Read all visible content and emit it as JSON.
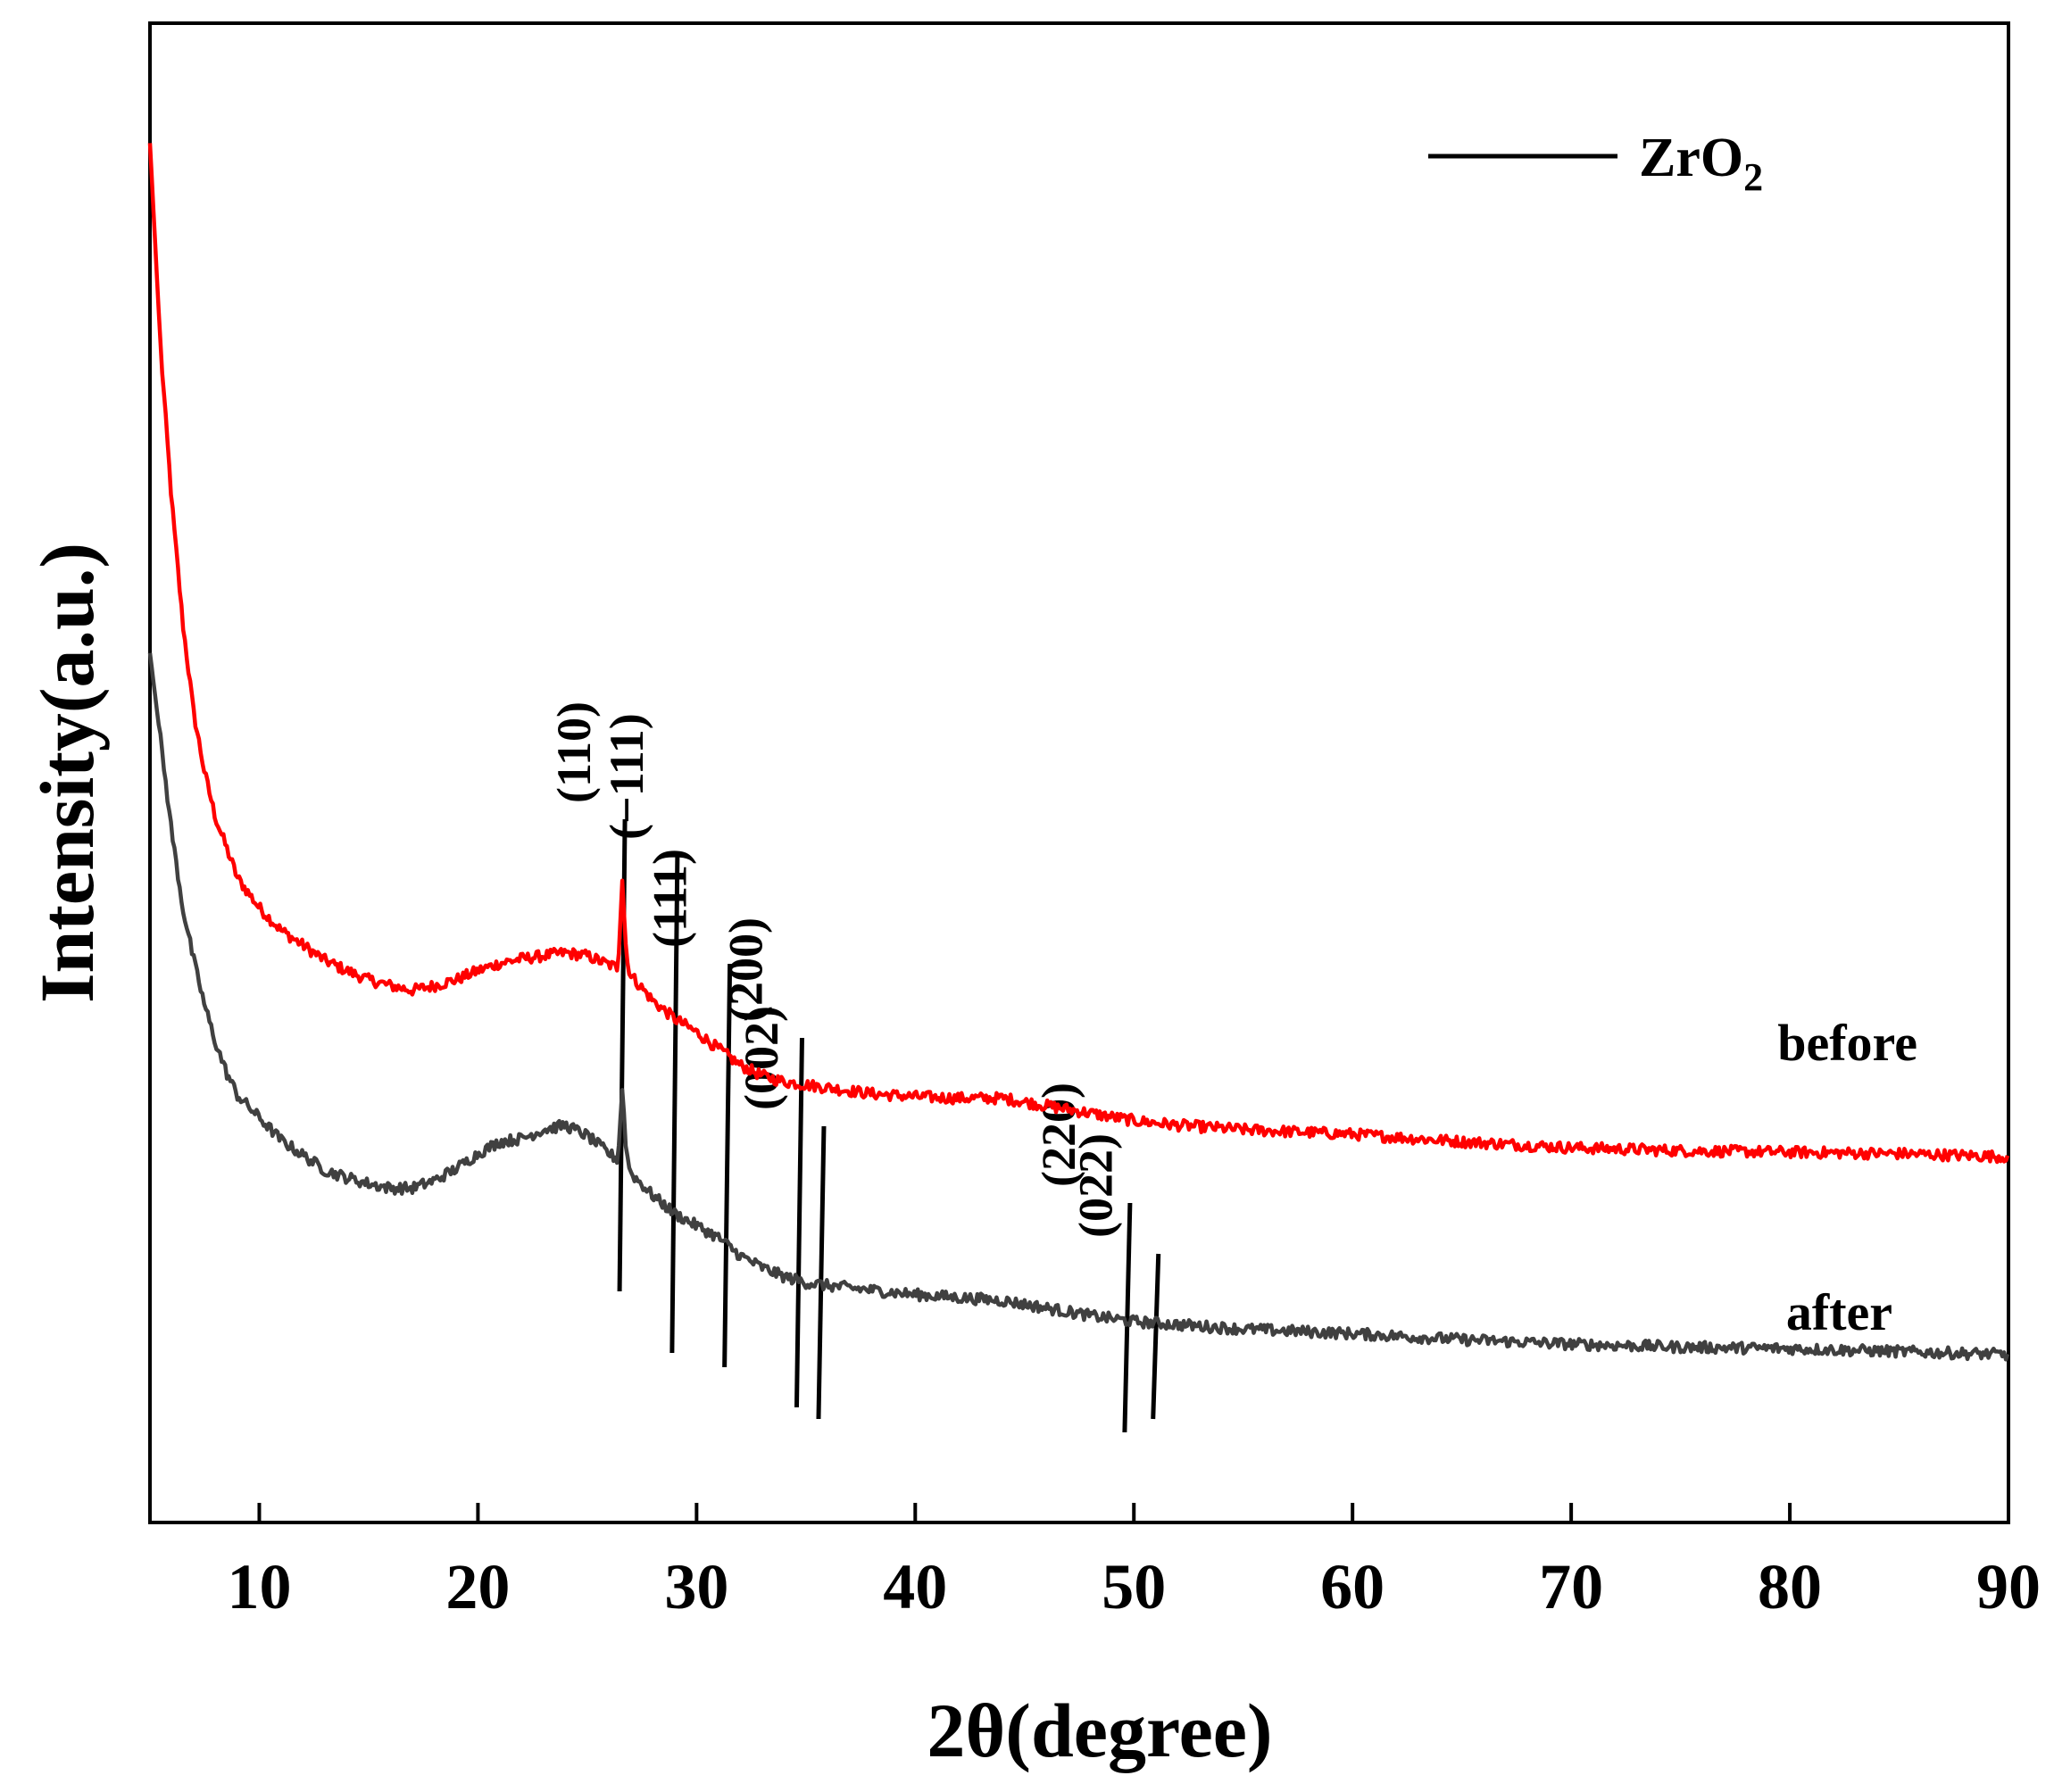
{
  "chart_data": {
    "type": "line",
    "title": "",
    "xlabel": "2θ(degree)",
    "ylabel": "Intensity(a.u.)",
    "xlim": [
      5,
      90
    ],
    "ylim": [
      0,
      100
    ],
    "x_ticks": [
      "10",
      "20",
      "30",
      "40",
      "50",
      "60",
      "70",
      "80",
      "90"
    ],
    "x_tick_values": [
      10,
      20,
      30,
      40,
      50,
      60,
      70,
      80,
      90
    ],
    "y_ticks": [],
    "grid": false,
    "legend": {
      "position": "top-right",
      "entries": [
        {
          "label": "ZrO",
          "subscript": "2",
          "color": "#000000"
        }
      ]
    },
    "series": [
      {
        "name": "before",
        "color": "#ff0000",
        "x": [
          5,
          5.5,
          6,
          6.5,
          7,
          7.5,
          8,
          8.5,
          9,
          10,
          11,
          12,
          13,
          14,
          15,
          16,
          17,
          18,
          19,
          20,
          21,
          22,
          23,
          24,
          25,
          26,
          26.4,
          26.6,
          26.8,
          27,
          28,
          29,
          30,
          31,
          32,
          33,
          34,
          35,
          36,
          38,
          40,
          42,
          44,
          46,
          48,
          50,
          52,
          55,
          60,
          65,
          70,
          75,
          80,
          85,
          90
        ],
        "y": [
          92,
          78,
          68,
          60,
          54,
          50,
          47,
          45,
          43,
          41,
          39.5,
          38.5,
          37.5,
          36.8,
          36.2,
          35.8,
          35.5,
          35.8,
          36.2,
          36.8,
          37.3,
          37.6,
          37.8,
          38,
          37.8,
          37.2,
          37,
          43,
          37.5,
          36.5,
          34.8,
          33.6,
          32.7,
          31.6,
          30.5,
          29.8,
          29.4,
          29.2,
          29,
          28.6,
          28.4,
          28.3,
          28.3,
          27.8,
          27.3,
          26.8,
          26.5,
          26.2,
          25.9,
          25.4,
          25,
          24.8,
          24.7,
          24.6,
          24.4
        ]
      },
      {
        "name": "after",
        "color": "#404040",
        "x": [
          5,
          5.5,
          6,
          6.5,
          7,
          7.5,
          8,
          8.5,
          9,
          10,
          11,
          12,
          13,
          14,
          15,
          16,
          17,
          18,
          19,
          20,
          21,
          22,
          23,
          24,
          25,
          26,
          26.4,
          26.6,
          26.8,
          27,
          28,
          29,
          30,
          31,
          32,
          33,
          34,
          35,
          36,
          38,
          40,
          42,
          44,
          46,
          48,
          50,
          52,
          55,
          60,
          65,
          70,
          75,
          80,
          85,
          90
        ],
        "y": [
          58,
          52,
          46,
          41,
          37.5,
          34.5,
          32,
          30,
          28.5,
          27,
          25.5,
          24.5,
          23.5,
          23,
          22.6,
          22.3,
          22.3,
          22.8,
          23.6,
          24.6,
          25.4,
          25.6,
          26.2,
          26.5,
          25.8,
          24.6,
          24.2,
          29,
          24.5,
          23.3,
          21.8,
          20.6,
          19.8,
          19,
          17.8,
          17,
          16.4,
          16,
          15.8,
          15.5,
          15.2,
          15,
          14.8,
          14.3,
          13.8,
          13.4,
          13.2,
          12.9,
          12.6,
          12.2,
          11.9,
          11.7,
          11.6,
          11.4,
          11.2
        ]
      }
    ],
    "series_labels": [
      "before",
      "after"
    ],
    "reference_lines": {
      "name": "ZrO2",
      "peaks": [
        {
          "label": "(110)",
          "x": 26.6
        },
        {
          "label": "(−111)",
          "x": 29.0
        },
        {
          "label": "(111)",
          "x": 31.4
        },
        {
          "label": "(200)",
          "x": 34.7
        },
        {
          "label": "(002)",
          "x": 35.7
        },
        {
          "label": "(220)",
          "x": 49.7
        },
        {
          "label": "(022)",
          "x": 51.0
        }
      ]
    }
  }
}
